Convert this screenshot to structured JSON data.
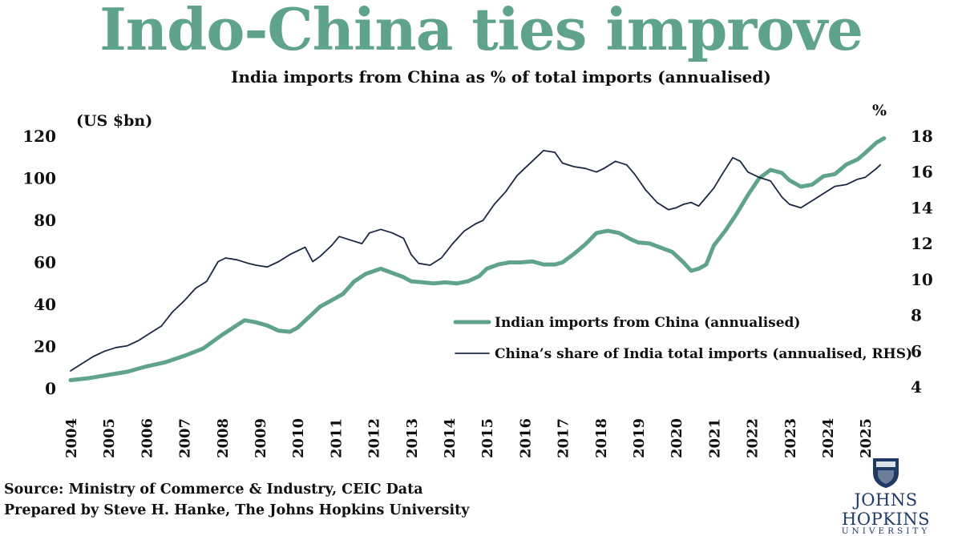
{
  "chart_data": {
    "type": "line",
    "title": "Indo-China ties improve",
    "subtitle": "India imports from China as % of total imports (annualised)",
    "ylabel": "(US $bn)",
    "ylabel_right": "%",
    "ylim": [
      0,
      120
    ],
    "ylim_right": [
      4,
      18
    ],
    "yticks": [
      "0",
      "20",
      "40",
      "60",
      "80",
      "100",
      "120"
    ],
    "yticks_right": [
      "4",
      "6",
      "8",
      "10",
      "12",
      "14",
      "16",
      "18"
    ],
    "xticks": [
      "2004",
      "2005",
      "2006",
      "2007",
      "2008",
      "2009",
      "2010",
      "2011",
      "2012",
      "2013",
      "2014",
      "2015",
      "2016",
      "2017",
      "2018",
      "2019",
      "2020",
      "2021",
      "2022",
      "2023",
      "2024",
      "2025"
    ],
    "series": [
      {
        "name": "Indian imports from China (annualised)",
        "axis": "left",
        "color": "#5fa38a",
        "x": [
          2004.0,
          2004.5,
          2005.0,
          2005.5,
          2006.0,
          2006.5,
          2007.0,
          2007.5,
          2008.0,
          2008.3,
          2008.6,
          2008.9,
          2009.2,
          2009.5,
          2009.8,
          2010.0,
          2010.3,
          2010.6,
          2010.9,
          2011.2,
          2011.5,
          2011.8,
          2012.2,
          2012.5,
          2012.8,
          2013.0,
          2013.3,
          2013.6,
          2013.9,
          2014.2,
          2014.5,
          2014.8,
          2015.0,
          2015.3,
          2015.6,
          2015.9,
          2016.2,
          2016.5,
          2016.8,
          2017.0,
          2017.3,
          2017.6,
          2017.9,
          2018.2,
          2018.5,
          2018.8,
          2019.0,
          2019.3,
          2019.6,
          2019.9,
          2020.2,
          2020.4,
          2020.6,
          2020.8,
          2021.0,
          2021.3,
          2021.6,
          2021.9,
          2022.2,
          2022.5,
          2022.8,
          2023.0,
          2023.3,
          2023.6,
          2023.9,
          2024.2,
          2024.5,
          2024.8,
          2025.0,
          2025.3,
          2025.5
        ],
        "values": [
          4,
          5,
          6.5,
          8,
          10.5,
          12.5,
          15.5,
          19,
          25.5,
          29,
          32.5,
          31.5,
          30,
          27.5,
          27,
          29,
          34,
          39,
          42,
          45,
          51,
          54.5,
          57,
          55,
          53,
          51,
          50.5,
          50,
          50.5,
          50,
          51,
          53.5,
          57,
          59,
          60,
          60,
          60.5,
          59,
          59,
          60,
          64,
          68.5,
          74,
          75,
          74,
          71,
          69.5,
          69,
          67,
          65,
          60,
          56,
          57,
          59,
          68,
          75,
          83,
          92,
          100,
          104,
          102.5,
          99,
          96,
          97,
          101,
          102,
          106.5,
          109,
          112,
          117,
          119
        ]
      },
      {
        "name": "China’s share of India total imports (annualised, RHS)",
        "axis": "right",
        "color": "#1c2741",
        "x": [
          2004.0,
          2004.3,
          2004.6,
          2004.9,
          2005.2,
          2005.5,
          2005.8,
          2006.1,
          2006.4,
          2006.7,
          2007.0,
          2007.3,
          2007.6,
          2007.9,
          2008.1,
          2008.4,
          2008.7,
          2008.9,
          2009.2,
          2009.5,
          2009.8,
          2010.0,
          2010.2,
          2010.4,
          2010.6,
          2010.9,
          2011.1,
          2011.4,
          2011.7,
          2011.9,
          2012.2,
          2012.5,
          2012.8,
          2013.0,
          2013.2,
          2013.5,
          2013.8,
          2014.1,
          2014.4,
          2014.7,
          2014.9,
          2015.2,
          2015.5,
          2015.8,
          2016.0,
          2016.3,
          2016.5,
          2016.8,
          2017.0,
          2017.3,
          2017.6,
          2017.9,
          2018.1,
          2018.4,
          2018.7,
          2018.9,
          2019.2,
          2019.5,
          2019.8,
          2020.0,
          2020.2,
          2020.4,
          2020.6,
          2020.8,
          2021.0,
          2021.2,
          2021.5,
          2021.7,
          2021.9,
          2022.2,
          2022.5,
          2022.8,
          2023.0,
          2023.3,
          2023.6,
          2023.9,
          2024.2,
          2024.5,
          2024.8,
          2025.0,
          2025.3,
          2025.4
        ],
        "values": [
          4.9,
          5.3,
          5.7,
          6.0,
          6.2,
          6.3,
          6.6,
          7.0,
          7.4,
          8.2,
          8.8,
          9.5,
          9.9,
          11.0,
          11.2,
          11.1,
          10.9,
          10.8,
          10.7,
          11.0,
          11.4,
          11.6,
          11.8,
          11.0,
          11.3,
          11.9,
          12.4,
          12.2,
          12.0,
          12.6,
          12.8,
          12.6,
          12.3,
          11.4,
          10.9,
          10.8,
          11.2,
          12.0,
          12.7,
          13.1,
          13.3,
          14.2,
          14.9,
          15.8,
          16.2,
          16.8,
          17.2,
          17.1,
          16.5,
          16.3,
          16.2,
          16.0,
          16.2,
          16.6,
          16.4,
          15.9,
          15.0,
          14.3,
          13.9,
          14.0,
          14.2,
          14.3,
          14.1,
          14.6,
          15.1,
          15.8,
          16.8,
          16.6,
          16.0,
          15.7,
          15.5,
          14.6,
          14.2,
          14.0,
          14.4,
          14.8,
          15.2,
          15.3,
          15.6,
          15.7,
          16.2,
          16.4
        ]
      }
    ],
    "legend": "center-right"
  },
  "footer": {
    "source": "Source: Ministry of Commerce & Industry, CEIC Data",
    "prepared": "Prepared by Steve H. Hanke, The Johns Hopkins University"
  },
  "logo": {
    "name": "JOHNS HOPKINS",
    "subname": "UNIVERSITY",
    "color": "#1f3a64"
  }
}
